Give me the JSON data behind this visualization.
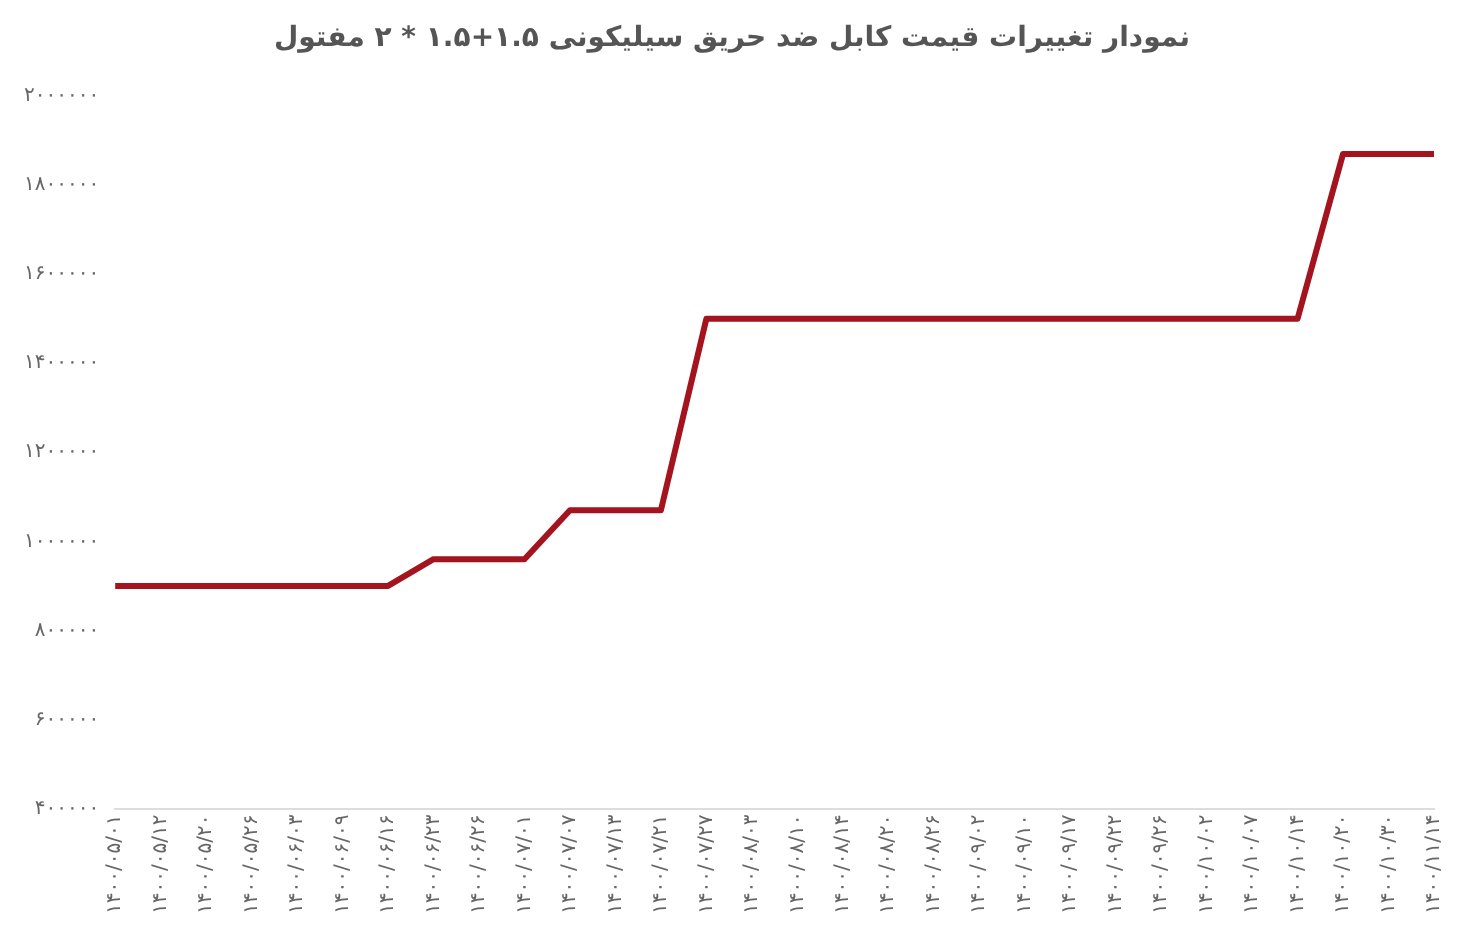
{
  "chart_data": {
    "type": "line",
    "title": "نمودار تغییرات قیمت کابل ضد حریق سیلیکونی ۱.۵+۱.۵ * ۲ مفتول",
    "categories": [
      "۱۴۰۰/۰۵/۰۱",
      "۱۴۰۰/۰۵/۱۲",
      "۱۴۰۰/۰۵/۲۰",
      "۱۴۰۰/۰۵/۲۶",
      "۱۴۰۰/۰۶/۰۳",
      "۱۴۰۰/۰۶/۰۹",
      "۱۴۰۰/۰۶/۱۶",
      "۱۴۰۰/۰۶/۲۳",
      "۱۴۰۰/۰۶/۲۶",
      "۱۴۰۰/۰۷/۰۱",
      "۱۴۰۰/۰۷/۰۷",
      "۱۴۰۰/۰۷/۱۳",
      "۱۴۰۰/۰۷/۲۱",
      "۱۴۰۰/۰۷/۲۷",
      "۱۴۰۰/۰۸/۰۳",
      "۱۴۰۰/۰۸/۱۰",
      "۱۴۰۰/۰۸/۱۴",
      "۱۴۰۰/۰۸/۲۰",
      "۱۴۰۰/۰۸/۲۶",
      "۱۴۰۰/۰۹/۰۲",
      "۱۴۰۰/۰۹/۱۰",
      "۱۴۰۰/۰۹/۱۷",
      "۱۴۰۰/۰۹/۲۲",
      "۱۴۰۰/۰۹/۲۶",
      "۱۴۰۰/۱۰/۰۲",
      "۱۴۰۰/۱۰/۰۷",
      "۱۴۰۰/۱۰/۱۴",
      "۱۴۰۰/۱۰/۲۰",
      "۱۴۰۰/۱۰/۳۰",
      "۱۴۰۰/۱۱/۱۴"
    ],
    "series": [
      {
        "color": "#a3141e",
        "values": [
          900000,
          900000,
          900000,
          900000,
          900000,
          900000,
          900000,
          960000,
          960000,
          960000,
          1070000,
          1070000,
          1070000,
          1500000,
          1500000,
          1500000,
          1500000,
          1500000,
          1500000,
          1500000,
          1500000,
          1500000,
          1500000,
          1500000,
          1500000,
          1500000,
          1500000,
          1870000,
          1870000,
          1870000
        ]
      }
    ],
    "ylim": [
      400000,
      2000000
    ],
    "yticks": [
      {
        "value": 400000,
        "label": "۴۰۰۰۰۰"
      },
      {
        "value": 600000,
        "label": "۶۰۰۰۰۰"
      },
      {
        "value": 800000,
        "label": "۸۰۰۰۰۰"
      },
      {
        "value": 1000000,
        "label": "۱۰۰۰۰۰۰"
      },
      {
        "value": 1200000,
        "label": "۱۲۰۰۰۰۰"
      },
      {
        "value": 1400000,
        "label": "۱۴۰۰۰۰۰"
      },
      {
        "value": 1600000,
        "label": "۱۶۰۰۰۰۰"
      },
      {
        "value": 1800000,
        "label": "۱۸۰۰۰۰۰"
      },
      {
        "value": 2000000,
        "label": "۲۰۰۰۰۰۰"
      }
    ],
    "grid": false,
    "legend": false,
    "marker": "none",
    "line_style": "solid"
  }
}
